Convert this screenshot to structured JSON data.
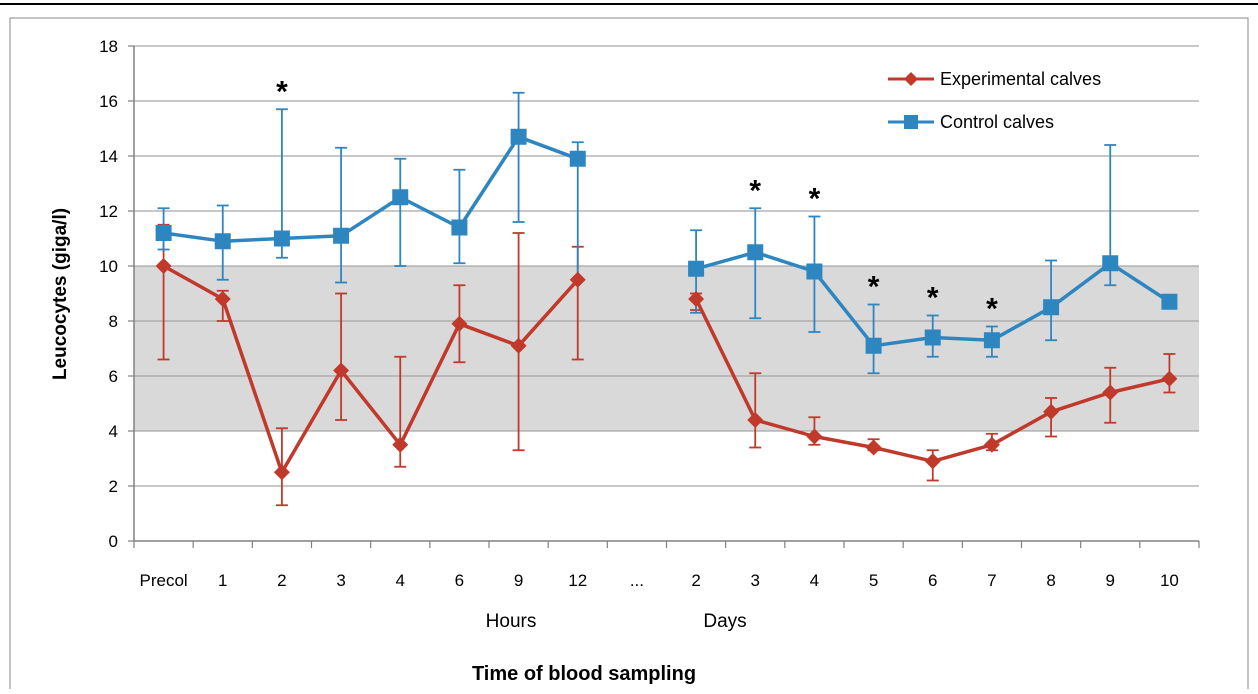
{
  "chart_data": {
    "type": "line",
    "title": "",
    "xlabel": "Time of blood sampling",
    "ylabel": "Leucocytes (giga/l)",
    "ylim": [
      0,
      18
    ],
    "yticks": [
      "0",
      "2",
      "4",
      "6",
      "8",
      "10",
      "12",
      "14",
      "16",
      "18"
    ],
    "categories": [
      "Precol",
      "1",
      "2",
      "3",
      "4",
      "6",
      "9",
      "12",
      "...",
      "2",
      "3",
      "4",
      "5",
      "6",
      "7",
      "8",
      "9",
      "10"
    ],
    "group_labels": [
      "Hours",
      "Days"
    ],
    "reference_range": [
      4,
      10
    ],
    "grid": true,
    "legend_position": "top-right",
    "significance_marker": "*",
    "significance_indices": [
      2,
      10,
      11,
      12,
      13,
      14
    ],
    "series": [
      {
        "name": "Experimental calves",
        "color": "#c0392b",
        "marker": "diamond",
        "values": [
          10.0,
          8.8,
          2.5,
          6.2,
          3.5,
          7.9,
          7.1,
          9.5,
          null,
          8.8,
          4.4,
          3.8,
          3.4,
          2.9,
          3.5,
          4.7,
          5.4,
          5.9
        ],
        "error_low": [
          6.6,
          8.0,
          1.3,
          4.4,
          2.7,
          6.5,
          3.3,
          6.6,
          null,
          8.4,
          3.4,
          3.5,
          3.3,
          2.2,
          3.3,
          3.8,
          4.3,
          5.4
        ],
        "error_high": [
          11.5,
          9.1,
          4.1,
          9.0,
          6.7,
          9.3,
          11.2,
          10.7,
          null,
          9.0,
          6.1,
          4.5,
          3.7,
          3.3,
          3.9,
          5.2,
          6.3,
          6.8
        ]
      },
      {
        "name": "Control calves",
        "color": "#2e86c1",
        "marker": "square",
        "values": [
          11.2,
          10.9,
          11.0,
          11.1,
          12.5,
          11.4,
          14.7,
          13.9,
          null,
          9.9,
          10.5,
          9.8,
          7.1,
          7.4,
          7.3,
          8.5,
          10.1,
          8.7
        ],
        "error_low": [
          10.6,
          9.5,
          10.3,
          9.4,
          10.0,
          10.1,
          11.6,
          9.5,
          null,
          8.3,
          8.1,
          7.6,
          6.1,
          6.7,
          6.7,
          7.3,
          9.3,
          8.6
        ],
        "error_high": [
          12.1,
          12.2,
          15.7,
          14.3,
          13.9,
          13.5,
          16.3,
          14.5,
          null,
          11.3,
          12.1,
          11.8,
          8.6,
          8.2,
          7.8,
          10.2,
          14.4,
          8.9
        ]
      }
    ]
  }
}
